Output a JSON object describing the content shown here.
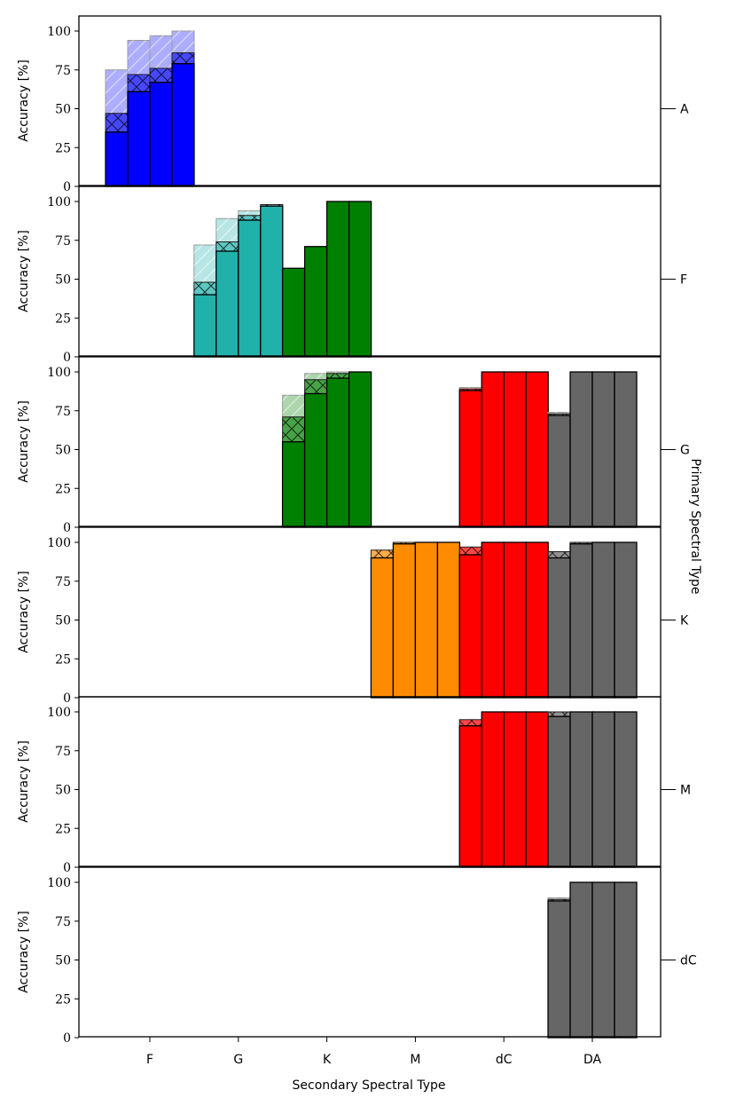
{
  "chart_data": {
    "type": "bar",
    "stacked_layers": [
      "solid",
      "crosshatch",
      "diagonal-hatch"
    ],
    "ylabel": "Accuracy [%]",
    "xlabel": "Secondary Spectral Type",
    "right_label": "Primary Spectral Type",
    "ylim": [
      0,
      100
    ],
    "yticks": [
      "0",
      "25",
      "50",
      "75",
      "100"
    ],
    "x_groups": [
      "F",
      "G",
      "K",
      "M",
      "dC",
      "DA"
    ],
    "bars_per_group": 4,
    "colors": {
      "F": "#0000ff",
      "G": "#20b2aa",
      "K": "#008000",
      "M": "#ff8c00",
      "dC": "#ff0000",
      "DA": "#666666"
    },
    "panels": [
      {
        "primary": "A",
        "groups": [
          {
            "secondary": "F",
            "color_key": "F",
            "bars": [
              [
                35,
                47,
                75
              ],
              [
                61,
                72,
                94
              ],
              [
                67,
                76,
                97
              ],
              [
                79,
                86,
                100
              ]
            ]
          }
        ]
      },
      {
        "primary": "F",
        "groups": [
          {
            "secondary": "G",
            "color_key": "G",
            "bars": [
              [
                40,
                48,
                72
              ],
              [
                68,
                74,
                89
              ],
              [
                88,
                91,
                94
              ],
              [
                97,
                98,
                98
              ]
            ]
          },
          {
            "secondary": "K",
            "color_key": "K",
            "bars": [
              [
                57,
                57,
                57
              ],
              [
                71,
                71,
                71
              ],
              [
                100,
                100,
                100
              ],
              [
                100,
                100,
                100
              ]
            ]
          }
        ]
      },
      {
        "primary": "G",
        "groups": [
          {
            "secondary": "K",
            "color_key": "K",
            "bars": [
              [
                55,
                71,
                85
              ],
              [
                86,
                95,
                99
              ],
              [
                96,
                99,
                100
              ],
              [
                100,
                100,
                100
              ]
            ]
          },
          {
            "secondary": "dC",
            "color_key": "dC",
            "bars": [
              [
                88,
                89,
                90
              ],
              [
                100,
                100,
                100
              ],
              [
                100,
                100,
                100
              ],
              [
                100,
                100,
                100
              ]
            ]
          },
          {
            "secondary": "DA",
            "color_key": "DA",
            "bars": [
              [
                72,
                73,
                74
              ],
              [
                100,
                100,
                100
              ],
              [
                100,
                100,
                100
              ],
              [
                100,
                100,
                100
              ]
            ]
          }
        ]
      },
      {
        "primary": "K",
        "groups": [
          {
            "secondary": "M",
            "color_key": "M",
            "bars": [
              [
                90,
                95,
                95
              ],
              [
                99,
                100,
                100
              ],
              [
                100,
                100,
                100
              ],
              [
                100,
                100,
                100
              ]
            ]
          },
          {
            "secondary": "dC",
            "color_key": "dC",
            "bars": [
              [
                92,
                97,
                97
              ],
              [
                100,
                100,
                100
              ],
              [
                100,
                100,
                100
              ],
              [
                100,
                100,
                100
              ]
            ]
          },
          {
            "secondary": "DA",
            "color_key": "DA",
            "bars": [
              [
                90,
                94,
                94
              ],
              [
                99,
                100,
                100
              ],
              [
                100,
                100,
                100
              ],
              [
                100,
                100,
                100
              ]
            ]
          }
        ]
      },
      {
        "primary": "M",
        "groups": [
          {
            "secondary": "dC",
            "color_key": "dC",
            "bars": [
              [
                91,
                95,
                95
              ],
              [
                100,
                100,
                100
              ],
              [
                100,
                100,
                100
              ],
              [
                100,
                100,
                100
              ]
            ]
          },
          {
            "secondary": "DA",
            "color_key": "DA",
            "bars": [
              [
                97,
                100,
                100
              ],
              [
                100,
                100,
                100
              ],
              [
                100,
                100,
                100
              ],
              [
                100,
                100,
                100
              ]
            ]
          }
        ]
      },
      {
        "primary": "dC",
        "groups": [
          {
            "secondary": "DA",
            "color_key": "DA",
            "bars": [
              [
                88,
                89,
                90
              ],
              [
                100,
                100,
                100
              ],
              [
                100,
                100,
                100
              ],
              [
                100,
                100,
                100
              ]
            ]
          }
        ]
      }
    ]
  }
}
